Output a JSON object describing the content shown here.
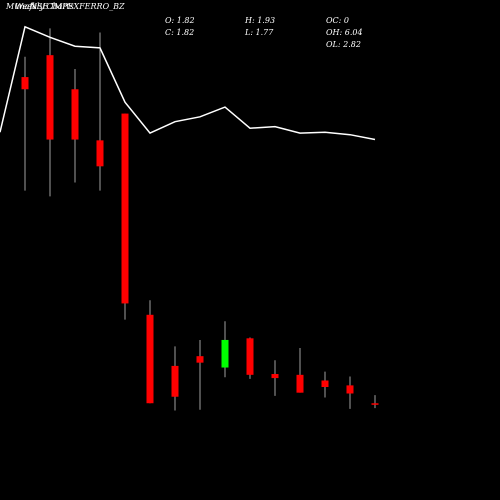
{
  "header": {
    "left_label": "Munafa",
    "overlap_label": "Weekly Charts",
    "symbol_line": "NSE IMPEXFERRO_BZ"
  },
  "ohlc": {
    "open": "O: 1.82",
    "close": "C: 1.82",
    "high": "H: 1.93",
    "low": "L: 1.77",
    "oc": "OC: 0",
    "oh": "OH: 6.04",
    "ol": "OL: 2.82"
  },
  "colors": {
    "up": "#00ff00",
    "down": "#ff0000",
    "wick": "#a0a0a0",
    "line": "#ffffff",
    "bg": "#000000"
  },
  "chart_data": {
    "type": "candlestick",
    "price_range": [
      1.5,
      6.8
    ],
    "candles": [
      {
        "open": 5.85,
        "close": 5.7,
        "high": 6.1,
        "low": 4.45
      },
      {
        "open": 6.12,
        "close": 5.08,
        "high": 6.45,
        "low": 4.38
      },
      {
        "open": 5.7,
        "close": 5.08,
        "high": 5.95,
        "low": 4.55
      },
      {
        "open": 5.07,
        "close": 4.75,
        "high": 6.4,
        "low": 4.45
      },
      {
        "open": 5.4,
        "close": 3.06,
        "high": 5.4,
        "low": 2.86
      },
      {
        "open": 2.92,
        "close": 1.83,
        "high": 3.1,
        "low": 1.83
      },
      {
        "open": 2.29,
        "close": 1.91,
        "high": 2.53,
        "low": 1.74
      },
      {
        "open": 2.41,
        "close": 2.33,
        "high": 2.61,
        "low": 1.75
      },
      {
        "open": 2.27,
        "close": 2.61,
        "high": 2.84,
        "low": 2.15
      },
      {
        "open": 2.63,
        "close": 2.18,
        "high": 2.64,
        "low": 2.13
      },
      {
        "open": 2.19,
        "close": 2.14,
        "high": 2.36,
        "low": 1.92
      },
      {
        "open": 2.18,
        "close": 1.96,
        "high": 2.51,
        "low": 1.96
      },
      {
        "open": 2.11,
        "close": 2.03,
        "high": 2.22,
        "low": 1.9
      },
      {
        "open": 2.05,
        "close": 1.95,
        "high": 2.16,
        "low": 1.76
      },
      {
        "open": 1.82,
        "close": 1.82,
        "high": 1.93,
        "low": 1.77
      }
    ],
    "moving_average": [
      5.17,
      6.47,
      6.34,
      6.23,
      6.21,
      5.54,
      5.16,
      5.3,
      5.36,
      5.48,
      5.22,
      5.24,
      5.16,
      5.17,
      5.14,
      5.08
    ]
  }
}
